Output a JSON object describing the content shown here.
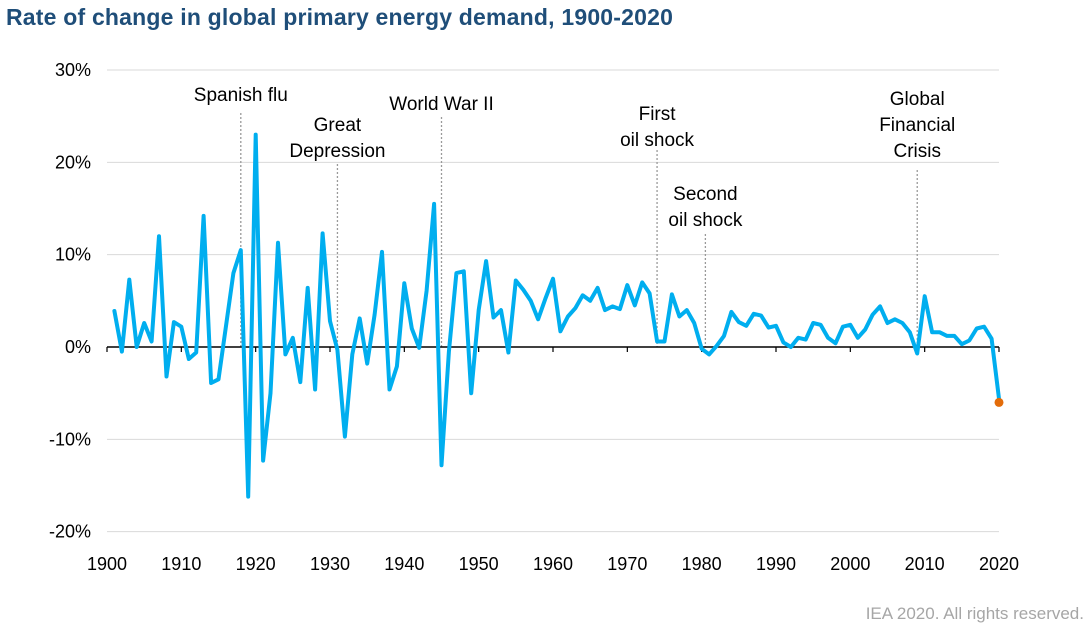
{
  "title": "Rate of change in global primary energy demand, 1900-2020",
  "credit": "IEA 2020. All rights reserved.",
  "colors": {
    "line": "#00aeef",
    "estimate": "#e36c0a",
    "title": "#1f4e79",
    "grid": "#d9d9d9"
  },
  "chart_data": {
    "type": "line",
    "xlim": [
      1900,
      2020
    ],
    "ylim": [
      -20,
      30
    ],
    "x_ticks": [
      1900,
      1910,
      1920,
      1930,
      1940,
      1950,
      1960,
      1970,
      1980,
      1990,
      2000,
      2010,
      2020
    ],
    "y_ticks": [
      {
        "value": 30,
        "label": "30%"
      },
      {
        "value": 20,
        "label": "20%"
      },
      {
        "value": 10,
        "label": "10%"
      },
      {
        "value": 0,
        "label": "0%"
      },
      {
        "value": -10,
        "label": "-10%"
      },
      {
        "value": -20,
        "label": "-20%"
      }
    ],
    "grid": true,
    "series": [
      {
        "x": [
          1901,
          1902,
          1903,
          1904,
          1905,
          1906,
          1907,
          1908,
          1909,
          1910,
          1911,
          1912,
          1913,
          1914,
          1915,
          1916,
          1917,
          1918,
          1919,
          1920,
          1921,
          1922,
          1923,
          1924,
          1925,
          1926,
          1927,
          1928,
          1929,
          1930,
          1931,
          1932,
          1933,
          1934,
          1935,
          1936,
          1937,
          1938,
          1939,
          1940,
          1941,
          1942,
          1943,
          1944,
          1945,
          1946,
          1947,
          1948,
          1949,
          1950,
          1951,
          1952,
          1953,
          1954,
          1955,
          1956,
          1957,
          1958,
          1959,
          1960,
          1961,
          1962,
          1963,
          1964,
          1965,
          1966,
          1967,
          1968,
          1969,
          1970,
          1971,
          1972,
          1973,
          1974,
          1975,
          1976,
          1977,
          1978,
          1979,
          1980,
          1981,
          1982,
          1983,
          1984,
          1985,
          1986,
          1987,
          1988,
          1989,
          1990,
          1991,
          1992,
          1993,
          1994,
          1995,
          1996,
          1997,
          1998,
          1999,
          2000,
          2001,
          2002,
          2003,
          2004,
          2005,
          2006,
          2007,
          2008,
          2009,
          2010,
          2011,
          2012,
          2013,
          2014,
          2015,
          2016,
          2017,
          2018,
          2019,
          2020
        ],
        "values": [
          3.9,
          -0.5,
          7.3,
          0.0,
          2.6,
          0.6,
          12.0,
          -3.2,
          2.7,
          2.2,
          -1.3,
          -0.6,
          14.2,
          -3.9,
          -3.5,
          2.2,
          8.0,
          10.5,
          -16.2,
          23.0,
          -12.3,
          -5.0,
          11.3,
          -0.8,
          1.0,
          -3.8,
          6.4,
          -4.6,
          12.3,
          2.8,
          -0.3,
          -9.7,
          -0.8,
          3.1,
          -1.8,
          3.5,
          10.3,
          -4.6,
          -2.1,
          6.9,
          2.0,
          -0.1,
          6.1,
          15.5,
          -12.8,
          -0.5,
          8.0,
          8.2,
          -5.0,
          4.0,
          9.3,
          3.2,
          4.0,
          -0.6,
          7.2,
          6.2,
          5.0,
          3.0,
          5.3,
          7.4,
          1.7,
          3.3,
          4.2,
          5.6,
          5.0,
          6.4,
          4.0,
          4.4,
          4.1,
          6.7,
          4.5,
          7.0,
          5.8,
          0.6,
          0.6,
          5.7,
          3.3,
          4.0,
          2.6,
          -0.2,
          -0.8,
          0.1,
          1.2,
          3.8,
          2.7,
          2.3,
          3.6,
          3.4,
          2.1,
          2.3,
          0.5,
          0.0,
          1.0,
          0.8,
          2.6,
          2.4,
          1.0,
          0.4,
          2.2,
          2.4,
          1.0,
          1.9,
          3.5,
          4.4,
          2.6,
          3.0,
          2.6,
          1.6,
          -0.7,
          5.5,
          1.6,
          1.6,
          1.2,
          1.2,
          0.3,
          0.7,
          2.0,
          2.2,
          0.9,
          -5.6
        ],
        "estimate": {
          "x": 2020,
          "value": -6.0
        }
      }
    ],
    "annotations": [
      {
        "lines": [
          "Spanish flu"
        ],
        "year": 1918
      },
      {
        "lines": [
          "Great",
          "Depression"
        ],
        "year": 1931
      },
      {
        "lines": [
          "World War II"
        ],
        "year": 1945
      },
      {
        "lines": [
          "First",
          "oil shock"
        ],
        "year": 1974
      },
      {
        "lines": [
          "Second",
          "oil shock"
        ],
        "year": 1980.5
      },
      {
        "lines": [
          "Global",
          "Financial",
          "Crisis"
        ],
        "year": 2009
      }
    ]
  }
}
